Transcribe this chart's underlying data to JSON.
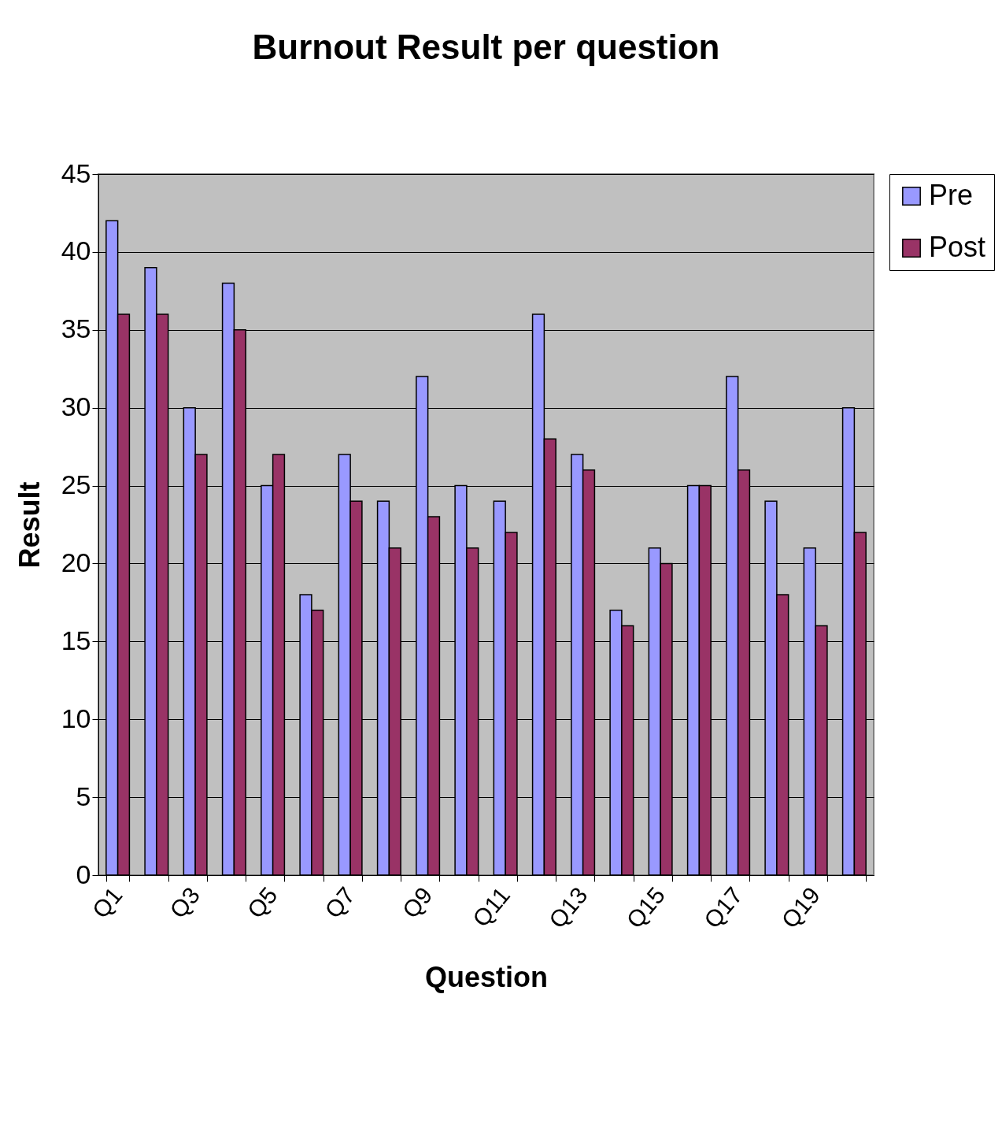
{
  "chart_data": {
    "type": "bar",
    "title": "Burnout Result per question",
    "xlabel": "Question",
    "ylabel": "Result",
    "categories": [
      "Q1",
      null,
      "Q3",
      null,
      "Q5",
      null,
      "Q7",
      null,
      "Q9",
      null,
      "Q11",
      null,
      "Q13",
      null,
      "Q15",
      null,
      "Q17",
      null,
      "Q19",
      null
    ],
    "series": [
      {
        "name": "Pre",
        "color": "#9999ff",
        "values": [
          42,
          39,
          30,
          38,
          25,
          18,
          27,
          24,
          32,
          25,
          24,
          36,
          27,
          17,
          21,
          25,
          32,
          24,
          21,
          30
        ]
      },
      {
        "name": "Post",
        "color": "#993366",
        "values": [
          36,
          36,
          27,
          35,
          27,
          17,
          24,
          21,
          23,
          21,
          22,
          28,
          26,
          16,
          20,
          25,
          26,
          18,
          16,
          22
        ]
      }
    ],
    "ylim": [
      0,
      45
    ],
    "yticks": [
      0,
      5,
      10,
      15,
      20,
      25,
      30,
      35,
      40,
      45
    ],
    "grid": "y",
    "legend": "right"
  }
}
